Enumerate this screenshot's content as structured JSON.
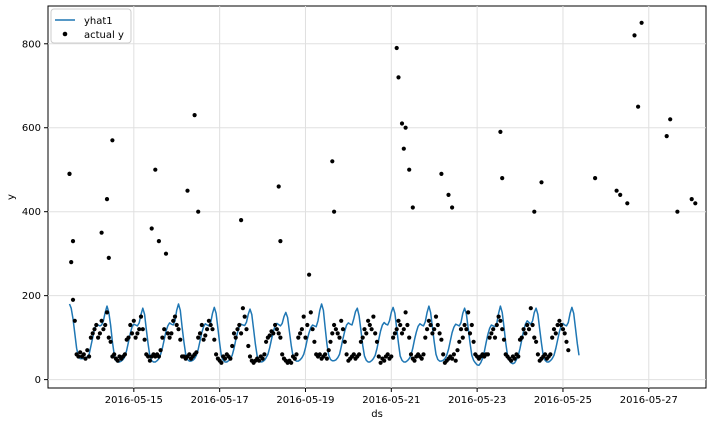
{
  "chart_data": {
    "type": "line",
    "xlabel": "ds",
    "ylabel": "y",
    "legend": {
      "placement": "top-left",
      "entries": [
        "yhat1",
        "actual y"
      ]
    },
    "grid": true,
    "xlim": [
      "2016-05-13T00:00",
      "2016-05-28T08:00"
    ],
    "ylim": [
      -20,
      890
    ],
    "x_ticks": [
      "2016-05-15",
      "2016-05-17",
      "2016-05-19",
      "2016-05-21",
      "2016-05-23",
      "2016-05-25",
      "2016-05-27"
    ],
    "y_ticks": [
      0,
      200,
      400,
      600,
      800
    ],
    "colors": {
      "yhat1": "#1f77b4",
      "actual": "#000000",
      "grid": "#e0e0e0"
    },
    "series": [
      {
        "name": "yhat1",
        "kind": "line",
        "start": "2016-05-13T12:00",
        "step_hours": 1,
        "values": [
          180,
          170,
          145,
          110,
          75,
          55,
          50,
          50,
          50,
          50,
          55,
          60,
          80,
          100,
          120,
          130,
          130,
          128,
          130,
          140,
          160,
          175,
          160,
          130,
          90,
          60,
          45,
          42,
          42,
          44,
          48,
          55,
          70,
          90,
          110,
          125,
          132,
          130,
          128,
          135,
          155,
          170,
          155,
          120,
          85,
          55,
          45,
          42,
          42,
          45,
          50,
          60,
          75,
          95,
          115,
          128,
          135,
          132,
          130,
          140,
          165,
          180,
          165,
          125,
          90,
          60,
          48,
          44,
          44,
          46,
          50,
          58,
          72,
          92,
          112,
          126,
          133,
          130,
          128,
          136,
          158,
          172,
          158,
          122,
          86,
          56,
          46,
          42,
          42,
          45,
          50,
          58,
          74,
          94,
          112,
          126,
          132,
          130,
          129,
          137,
          156,
          168,
          155,
          120,
          84,
          56,
          46,
          42,
          43,
          46,
          52,
          60,
          76,
          96,
          114,
          128,
          134,
          131,
          128,
          134,
          150,
          160,
          148,
          115,
          82,
          56,
          47,
          44,
          44,
          47,
          52,
          60,
          76,
          96,
          112,
          124,
          130,
          128,
          126,
          140,
          165,
          180,
          165,
          125,
          85,
          58,
          48,
          45,
          45,
          47,
          52,
          60,
          78,
          98,
          116,
          130,
          135,
          132,
          130,
          145,
          162,
          170,
          152,
          118,
          82,
          56,
          46,
          42,
          42,
          45,
          50,
          58,
          74,
          96,
          116,
          130,
          136,
          132,
          130,
          140,
          160,
          172,
          158,
          122,
          86,
          56,
          46,
          42,
          42,
          45,
          50,
          58,
          75,
          95,
          113,
          127,
          133,
          130,
          128,
          138,
          160,
          175,
          160,
          125,
          90,
          60,
          48,
          44,
          44,
          46,
          50,
          58,
          72,
          92,
          112,
          125,
          132,
          130,
          128,
          136,
          158,
          170,
          156,
          122,
          88,
          58,
          46,
          40,
          35,
          34,
          40,
          50,
          66,
          88,
          108,
          122,
          130,
          128,
          126,
          134,
          158,
          175,
          160,
          125,
          88,
          58,
          46,
          40,
          38,
          40,
          48,
          58,
          74,
          95,
          116,
          132,
          140,
          136,
          132,
          140,
          160,
          170,
          155,
          120,
          86,
          56,
          46,
          42,
          42,
          45,
          50,
          58,
          74,
          94,
          114,
          128,
          134,
          130,
          128,
          136,
          158,
          172,
          158,
          122,
          86,
          58
        ]
      },
      {
        "name": "actual y",
        "kind": "scatter",
        "start": "2016-05-13T12:00",
        "step_hours": 1,
        "values": [
          490,
          280,
          190,
          140,
          60,
          55,
          65,
          55,
          60,
          50,
          70,
          55,
          100,
          110,
          120,
          130,
          100,
          110,
          140,
          120,
          130,
          160,
          100,
          90,
          55,
          60,
          50,
          45,
          55,
          50,
          55,
          60,
          95,
          100,
          130,
          110,
          140,
          100,
          110,
          120,
          150,
          120,
          95,
          60,
          55,
          45,
          55,
          60,
          55,
          60,
          55,
          70,
          100,
          120,
          300,
          110,
          100,
          110,
          140,
          150,
          130,
          120,
          95,
          55,
          55,
          50,
          55,
          60,
          50,
          55,
          60,
          65,
          100,
          110,
          130,
          95,
          105,
          120,
          140,
          130,
          120,
          95,
          60,
          50,
          45,
          40,
          55,
          50,
          60,
          55,
          50,
          80,
          110,
          100,
          120,
          130,
          110,
          170,
          150,
          120,
          80,
          55,
          45,
          40,
          45,
          50,
          45,
          55,
          50,
          60,
          90,
          100,
          105,
          115,
          110,
          130,
          120,
          110,
          100,
          60,
          50,
          45,
          40,
          45,
          40,
          55,
          50,
          60,
          100,
          110,
          120,
          150,
          100,
          130,
          250,
          160,
          120,
          90,
          60,
          55,
          60,
          50,
          55,
          60,
          50,
          70,
          90,
          110,
          130,
          120,
          110,
          100,
          140,
          120,
          90,
          60,
          45,
          50,
          55,
          60,
          50,
          55,
          60,
          90,
          100,
          120,
          110,
          140,
          130,
          120,
          150,
          110,
          90,
          55,
          40,
          50,
          45,
          55,
          60,
          50,
          55,
          100,
          110,
          120,
          140,
          130,
          110,
          120,
          160,
          130,
          100,
          60,
          50,
          45,
          55,
          60,
          55,
          50,
          60,
          100,
          120,
          140,
          130,
          110,
          120,
          150,
          130,
          110,
          95,
          60,
          40,
          45,
          50,
          55,
          50,
          60,
          45,
          70,
          90,
          120,
          100,
          130,
          120,
          160,
          110,
          130,
          90,
          60,
          55,
          50,
          55,
          60,
          55,
          60,
          60,
          100,
          110,
          120,
          100,
          130,
          150,
          140,
          120,
          95,
          60,
          55,
          50,
          45,
          55,
          50,
          60,
          55,
          95,
          100,
          120,
          110,
          130,
          120,
          170,
          130,
          100,
          90,
          60,
          45,
          50,
          55,
          60,
          50,
          55,
          60,
          100,
          120,
          110,
          130,
          140,
          130,
          120,
          110,
          90,
          70
        ]
      },
      {
        "name": "actual y outliers",
        "kind": "scatter",
        "x": [
          "2016-05-13T12:00",
          "2016-05-13T14:00",
          "2016-05-14T06:00",
          "2016-05-14T09:00",
          "2016-05-14T10:00",
          "2016-05-14T12:00",
          "2016-05-15T10:00",
          "2016-05-15T12:00",
          "2016-05-15T14:00",
          "2016-05-16T06:00",
          "2016-05-16T10:00",
          "2016-05-16T12:00",
          "2016-05-17T12:00",
          "2016-05-18T09:00",
          "2016-05-18T10:00",
          "2016-05-19T15:00",
          "2016-05-19T16:00",
          "2016-05-21T03:00",
          "2016-05-21T04:00",
          "2016-05-21T06:00",
          "2016-05-21T07:00",
          "2016-05-21T08:00",
          "2016-05-21T10:00",
          "2016-05-21T12:00",
          "2016-05-22T04:00",
          "2016-05-22T08:00",
          "2016-05-22T10:00",
          "2016-05-23T13:00",
          "2016-05-23T14:00",
          "2016-05-24T08:00",
          "2016-05-24T12:00",
          "2016-05-25T18:00",
          "2016-05-26T06:00",
          "2016-05-26T08:00",
          "2016-05-26T12:00",
          "2016-05-26T16:00",
          "2016-05-26T18:00",
          "2016-05-26T20:00",
          "2016-05-27T10:00",
          "2016-05-27T12:00",
          "2016-05-27T16:00",
          "2016-05-28T00:00",
          "2016-05-28T02:00"
        ],
        "values": [
          490,
          330,
          350,
          430,
          290,
          570,
          360,
          500,
          330,
          450,
          630,
          400,
          380,
          460,
          330,
          520,
          400,
          790,
          720,
          610,
          550,
          600,
          500,
          410,
          490,
          440,
          410,
          590,
          480,
          400,
          470,
          480,
          450,
          440,
          420,
          820,
          650,
          850,
          580,
          620,
          400,
          430,
          420
        ]
      }
    ]
  }
}
